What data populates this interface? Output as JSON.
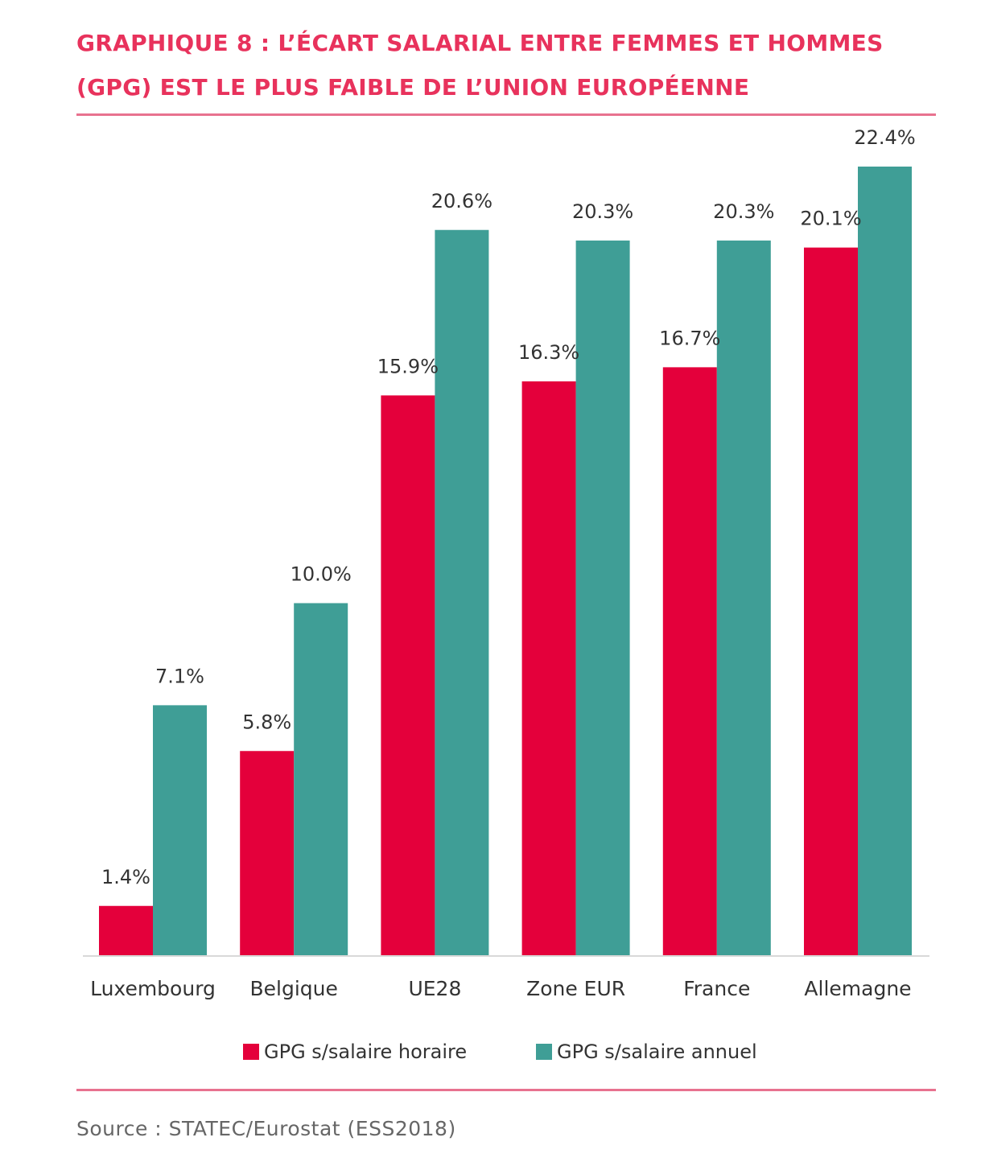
{
  "title": "GRAPHIQUE 8 : L’ÉCART SALARIAL ENTRE FEMMES ET HOMMES (GPG) EST LE PLUS FAIBLE DE L’UNION EUROPÉENNE",
  "source": "Source : STATEC/Eurostat (ESS2018)",
  "colors": {
    "horaire": "#e4003b",
    "annuel": "#3f9e96",
    "rule": "#e8728f",
    "title": "#e8325c"
  },
  "chart_data": {
    "type": "bar",
    "categories": [
      "Luxembourg",
      "Belgique",
      "UE28",
      "Zone EUR",
      "France",
      "Allemagne"
    ],
    "series": [
      {
        "name": "GPG s/salaire horaire",
        "values": [
          1.4,
          5.8,
          15.9,
          16.3,
          16.7,
          20.1
        ],
        "labels": [
          "1.4%",
          "5.8%",
          "15.9%",
          "16.3%",
          "16.7%",
          "20.1%"
        ]
      },
      {
        "name": "GPG s/salaire annuel",
        "values": [
          7.1,
          10.0,
          20.6,
          20.3,
          20.3,
          22.4
        ],
        "labels": [
          "7.1%",
          "10.0%",
          "20.6%",
          "20.3%",
          "20.3%",
          "22.4%"
        ]
      }
    ],
    "ylim": [
      0,
      22.4
    ],
    "legend": "bottom",
    "grid": false
  }
}
